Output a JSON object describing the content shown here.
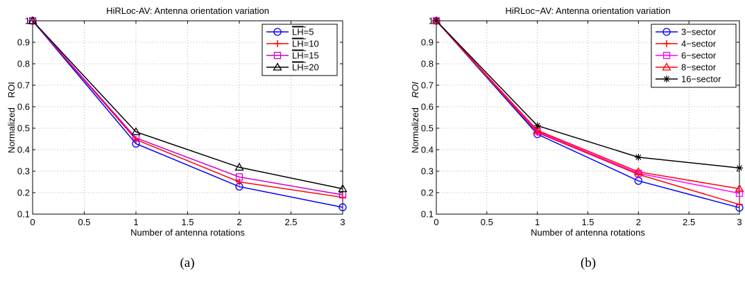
{
  "chart_data": [
    {
      "type": "line",
      "title": "HiRLoc-AV: Antenna orientation variation",
      "xlabel": "Number of antenna rotations",
      "ylabel_parts": [
        "Normalized",
        "ROI"
      ],
      "caption": "(a)",
      "xlim": [
        0,
        3
      ],
      "ylim": [
        0.1,
        1
      ],
      "x_ticks": [
        "0",
        "0.5",
        "1",
        "1.5",
        "2",
        "2.5",
        "3"
      ],
      "y_ticks": [
        "0.1",
        "0.2",
        "0.3",
        "0.4",
        "0.5",
        "0.6",
        "0.7",
        "0.8",
        "0.9",
        "1"
      ],
      "grid": true,
      "legend": "top-right",
      "x": [
        0,
        1,
        2,
        3
      ],
      "series": [
        {
          "name": "LH",
          "name_suffix": "=5",
          "overline": true,
          "color": "#0000ff",
          "marker": "circle",
          "values": [
            1.0,
            0.428,
            0.228,
            0.132
          ]
        },
        {
          "name": "LH",
          "name_suffix": "=10",
          "overline": true,
          "color": "#ff0000",
          "marker": "plus",
          "values": [
            1.0,
            0.447,
            0.25,
            0.178
          ]
        },
        {
          "name": "LH",
          "name_suffix": "=15",
          "overline": true,
          "color": "#cc00cc",
          "marker": "square",
          "values": [
            1.0,
            0.455,
            0.273,
            0.19
          ]
        },
        {
          "name": "LH",
          "name_suffix": "=20",
          "overline": true,
          "color": "#000000",
          "marker": "triangle",
          "values": [
            1.0,
            0.483,
            0.318,
            0.218
          ]
        }
      ]
    },
    {
      "type": "line",
      "title": "HiRLoc−AV: Antenna orientation variation",
      "xlabel": "Number of antenna rotations",
      "ylabel_parts": [
        "Normalized",
        "ROI"
      ],
      "caption": "(b)",
      "xlim": [
        0,
        3
      ],
      "ylim": [
        0.1,
        1
      ],
      "x_ticks": [
        "0",
        "0.5",
        "1",
        "1.5",
        "2",
        "2.5",
        "3"
      ],
      "y_ticks": [
        "0.1",
        "0.2",
        "0.3",
        "0.4",
        "0.5",
        "0.6",
        "0.7",
        "0.8",
        "0.9",
        "1"
      ],
      "grid": true,
      "legend": "top-right",
      "x": [
        0,
        1,
        2,
        3
      ],
      "series": [
        {
          "name": "3−sector",
          "color": "#0000ff",
          "marker": "circle",
          "values": [
            1.0,
            0.472,
            0.255,
            0.13
          ]
        },
        {
          "name": "4−sector",
          "color": "#ff0000",
          "marker": "plus",
          "values": [
            1.0,
            0.48,
            0.285,
            0.145
          ]
        },
        {
          "name": "6−sector",
          "color": "#ff00ff",
          "marker": "square",
          "values": [
            1.0,
            0.485,
            0.29,
            0.197
          ]
        },
        {
          "name": "8−sector",
          "color": "#ff0000",
          "marker": "triangle",
          "values": [
            1.0,
            0.49,
            0.297,
            0.218
          ]
        },
        {
          "name": "16−sector",
          "color": "#000000",
          "marker": "star",
          "values": [
            1.0,
            0.512,
            0.365,
            0.315
          ]
        }
      ]
    }
  ]
}
